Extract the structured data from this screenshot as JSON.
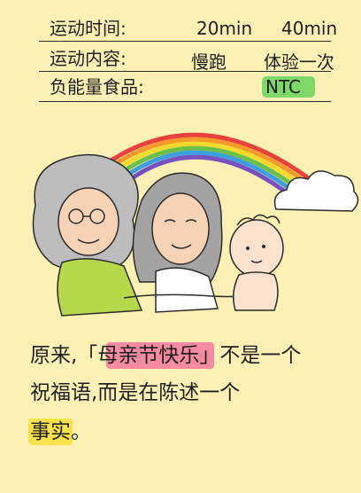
{
  "header": {
    "time_label": "运动时间:",
    "time_val1": "20min",
    "time_val2": "40min",
    "content_label": "运动内容:",
    "content_val1": "慢跑",
    "content_val2": "体验一次",
    "food_label": "负能量食品:",
    "food_val": "NTC"
  },
  "caption": {
    "line1_pre": "原来,「",
    "line1_highlight": "母亲节快乐",
    "line1_post": "」不是一个",
    "line2": "祝福语,而是在陈述一个",
    "line3_highlight": "事实",
    "line3_post": "。"
  },
  "colors": {
    "background": "#FDF0B4",
    "ntc_highlight": "#7FD86A",
    "pink_highlight": "#F58AA3",
    "yellow_highlight": "#F9E24A"
  }
}
